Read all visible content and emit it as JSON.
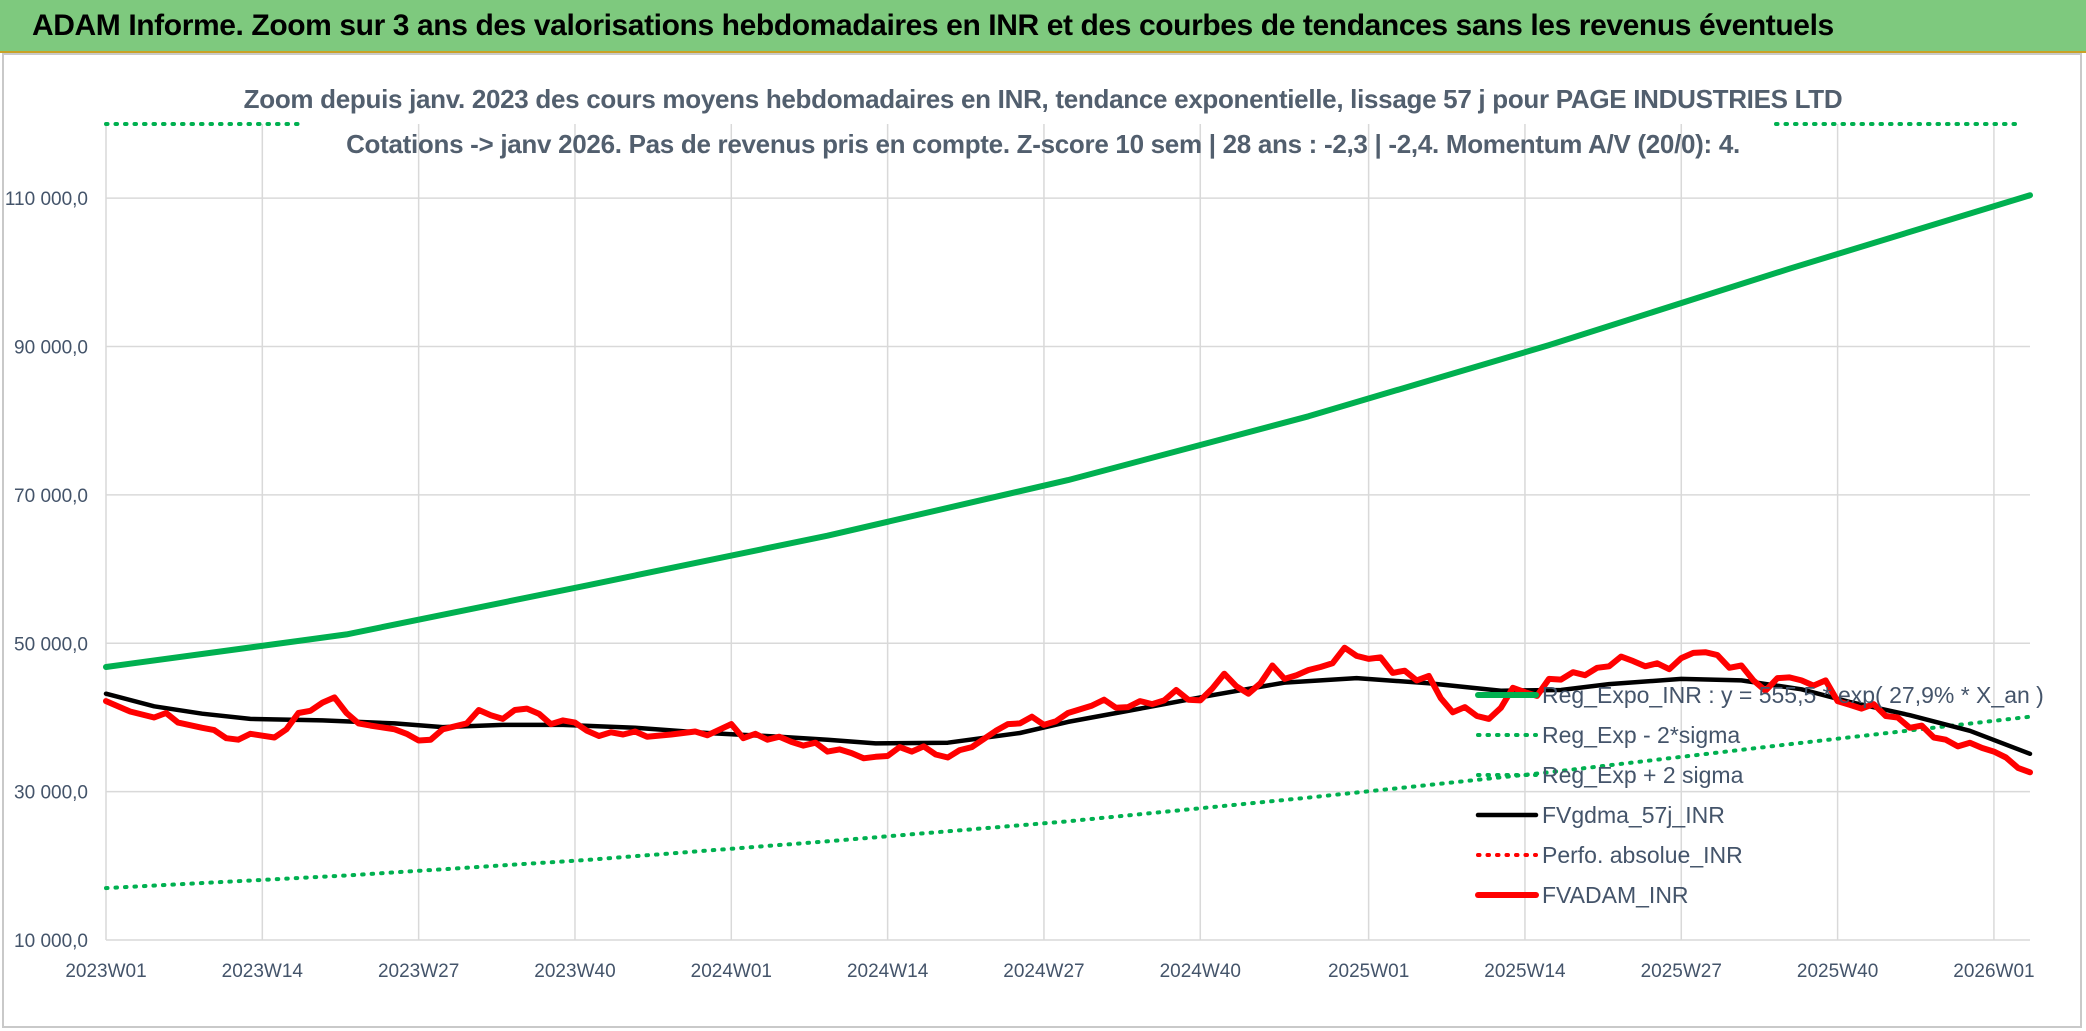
{
  "banner": {
    "title": "ADAM Informe. Zoom sur 3 ans des valorisations hebdomadaires en INR et des courbes de tendances sans les revenus éventuels"
  },
  "colors": {
    "banner_bg": "#7ec97e",
    "trend": "#00b050",
    "price": "#ff0000",
    "mma": "#000000",
    "grid": "#d9d9d9",
    "text": "#44546a"
  },
  "chart_data": {
    "type": "line",
    "title_line1": "Zoom depuis janv. 2023 des cours moyens hebdomadaires en INR, tendance exponentielle, lissage 57 j pour PAGE INDUSTRIES LTD",
    "title_line2": "Cotations -> janv 2026. Pas de revenus pris en compte. Z-score 10 sem | 28 ans : -2,3 | -2,4. Momentum A/V (20/0): 4.",
    "xlabel": "",
    "ylabel": "",
    "ylim": [
      10000,
      120000
    ],
    "y_ticks": [
      "10 000,0",
      "30 000,0",
      "50 000,0",
      "70 000,0",
      "90 000,0",
      "110 000,0"
    ],
    "y_tick_values": [
      10000,
      30000,
      50000,
      70000,
      90000,
      110000
    ],
    "x_range_weeks": [
      0,
      160
    ],
    "x_ticks": [
      "2023W01",
      "2023W14",
      "2023W27",
      "2023W40",
      "2024W01",
      "2024W14",
      "2024W27",
      "2024W40",
      "2025W01",
      "2025W14",
      "2025W27",
      "2025W40",
      "2026W01"
    ],
    "x_tick_weeks": [
      0,
      13,
      26,
      39,
      52,
      65,
      78,
      91,
      105,
      118,
      131,
      144,
      157
    ],
    "grid": true,
    "legend_position": "right",
    "series": [
      {
        "name": "Reg_Expo_INR : y = 555,5 * exp( 27,9% *  X_an )",
        "color": "#00b050",
        "style": "solid-thick",
        "points": [
          [
            0,
            46800
          ],
          [
            20,
            51200
          ],
          [
            40,
            57800
          ],
          [
            60,
            64500
          ],
          [
            80,
            72000
          ],
          [
            100,
            80600
          ],
          [
            120,
            90200
          ],
          [
            140,
            100500
          ],
          [
            160,
            110400
          ]
        ]
      },
      {
        "name": "Reg_Exp - 2*sigma",
        "color": "#00b050",
        "style": "dotted",
        "points": [
          [
            0,
            120000
          ],
          [
            160,
            120000
          ]
        ]
      },
      {
        "name": "Reg_Exp + 2 sigma",
        "color": "#00b050",
        "style": "dotted",
        "points": [
          [
            0,
            17000
          ],
          [
            20,
            18700
          ],
          [
            40,
            20800
          ],
          [
            60,
            23300
          ],
          [
            80,
            26000
          ],
          [
            100,
            29200
          ],
          [
            120,
            32600
          ],
          [
            140,
            36400
          ],
          [
            160,
            40100
          ]
        ]
      },
      {
        "name": "FVgdma_57j_INR",
        "color": "#000000",
        "style": "solid",
        "points": [
          [
            0,
            43200
          ],
          [
            4,
            41500
          ],
          [
            8,
            40500
          ],
          [
            12,
            39800
          ],
          [
            18,
            39600
          ],
          [
            24,
            39200
          ],
          [
            28,
            38700
          ],
          [
            33,
            39000
          ],
          [
            38,
            39000
          ],
          [
            44,
            38600
          ],
          [
            50,
            37900
          ],
          [
            56,
            37400
          ],
          [
            60,
            37000
          ],
          [
            64,
            36500
          ],
          [
            70,
            36600
          ],
          [
            76,
            37900
          ],
          [
            80,
            39400
          ],
          [
            86,
            41200
          ],
          [
            92,
            43000
          ],
          [
            98,
            44700
          ],
          [
            104,
            45300
          ],
          [
            110,
            44600
          ],
          [
            116,
            43600
          ],
          [
            121,
            43700
          ],
          [
            125,
            44500
          ],
          [
            131,
            45200
          ],
          [
            136,
            45000
          ],
          [
            141,
            43800
          ],
          [
            145,
            42100
          ],
          [
            150,
            40300
          ],
          [
            155,
            38200
          ],
          [
            160,
            35100
          ]
        ]
      },
      {
        "name": "Perfo. absolue_INR",
        "color": "#ff0000",
        "style": "dotted",
        "points": []
      },
      {
        "name": "FVADAM_INR",
        "color": "#ff0000",
        "style": "solid-thick",
        "points": [
          [
            0,
            42200
          ],
          [
            2,
            40800
          ],
          [
            4,
            40000
          ],
          [
            5,
            40600
          ],
          [
            6,
            39300
          ],
          [
            8,
            38600
          ],
          [
            9,
            38300
          ],
          [
            10,
            37200
          ],
          [
            11,
            37000
          ],
          [
            12,
            37800
          ],
          [
            14,
            37300
          ],
          [
            15,
            38400
          ],
          [
            16,
            40600
          ],
          [
            17,
            40900
          ],
          [
            18,
            42000
          ],
          [
            19,
            42700
          ],
          [
            20,
            40600
          ],
          [
            21,
            39200
          ],
          [
            22,
            38900
          ],
          [
            24,
            38400
          ],
          [
            25,
            37800
          ],
          [
            26,
            36900
          ],
          [
            27,
            37000
          ],
          [
            28,
            38400
          ],
          [
            30,
            39200
          ],
          [
            31,
            41000
          ],
          [
            32,
            40300
          ],
          [
            33,
            39800
          ],
          [
            34,
            41000
          ],
          [
            35,
            41200
          ],
          [
            36,
            40500
          ],
          [
            37,
            39100
          ],
          [
            38,
            39600
          ],
          [
            39,
            39300
          ],
          [
            40,
            38200
          ],
          [
            41,
            37500
          ],
          [
            42,
            38000
          ],
          [
            43,
            37700
          ],
          [
            44,
            38100
          ],
          [
            45,
            37400
          ],
          [
            47,
            37700
          ],
          [
            49,
            38100
          ],
          [
            50,
            37600
          ],
          [
            52,
            39100
          ],
          [
            53,
            37200
          ],
          [
            54,
            37800
          ],
          [
            55,
            37000
          ],
          [
            56,
            37400
          ],
          [
            57,
            36700
          ],
          [
            58,
            36200
          ],
          [
            59,
            36600
          ],
          [
            60,
            35400
          ],
          [
            61,
            35700
          ],
          [
            62,
            35200
          ],
          [
            63,
            34500
          ],
          [
            64,
            34700
          ],
          [
            65,
            34800
          ],
          [
            66,
            36000
          ],
          [
            67,
            35400
          ],
          [
            68,
            36100
          ],
          [
            69,
            35000
          ],
          [
            70,
            34600
          ],
          [
            71,
            35600
          ],
          [
            72,
            36000
          ],
          [
            73,
            37100
          ],
          [
            74,
            38200
          ],
          [
            75,
            39100
          ],
          [
            76,
            39200
          ],
          [
            77,
            40100
          ],
          [
            78,
            39000
          ],
          [
            79,
            39500
          ],
          [
            80,
            40600
          ],
          [
            82,
            41600
          ],
          [
            83,
            42400
          ],
          [
            84,
            41300
          ],
          [
            85,
            41400
          ],
          [
            86,
            42200
          ],
          [
            87,
            41800
          ],
          [
            88,
            42300
          ],
          [
            89,
            43700
          ],
          [
            90,
            42400
          ],
          [
            91,
            42300
          ],
          [
            92,
            43900
          ],
          [
            93,
            45900
          ],
          [
            94,
            44200
          ],
          [
            95,
            43200
          ],
          [
            96,
            44600
          ],
          [
            97,
            47000
          ],
          [
            98,
            45200
          ],
          [
            99,
            45700
          ],
          [
            100,
            46400
          ],
          [
            101,
            46800
          ],
          [
            102,
            47300
          ],
          [
            103,
            49400
          ],
          [
            104,
            48300
          ],
          [
            105,
            47900
          ],
          [
            106,
            48100
          ],
          [
            107,
            46000
          ],
          [
            108,
            46300
          ],
          [
            109,
            45000
          ],
          [
            110,
            45600
          ],
          [
            111,
            42600
          ],
          [
            112,
            40700
          ],
          [
            113,
            41400
          ],
          [
            114,
            40200
          ],
          [
            115,
            39800
          ],
          [
            116,
            41300
          ],
          [
            117,
            44000
          ],
          [
            118,
            43400
          ],
          [
            119,
            42900
          ],
          [
            120,
            45200
          ],
          [
            121,
            45100
          ],
          [
            122,
            46100
          ],
          [
            123,
            45700
          ],
          [
            124,
            46700
          ],
          [
            125,
            46900
          ],
          [
            126,
            48200
          ],
          [
            127,
            47600
          ],
          [
            128,
            46900
          ],
          [
            129,
            47300
          ],
          [
            130,
            46500
          ],
          [
            131,
            48000
          ],
          [
            132,
            48700
          ],
          [
            133,
            48800
          ],
          [
            134,
            48400
          ],
          [
            135,
            46700
          ],
          [
            136,
            47000
          ],
          [
            137,
            45000
          ],
          [
            138,
            43600
          ],
          [
            139,
            45300
          ],
          [
            140,
            45400
          ],
          [
            141,
            45000
          ],
          [
            142,
            44300
          ],
          [
            143,
            45000
          ],
          [
            144,
            42200
          ],
          [
            145,
            41700
          ],
          [
            146,
            41200
          ],
          [
            147,
            41800
          ],
          [
            148,
            40200
          ],
          [
            149,
            40000
          ],
          [
            150,
            38600
          ],
          [
            151,
            38900
          ],
          [
            152,
            37300
          ],
          [
            153,
            37000
          ],
          [
            154,
            36100
          ],
          [
            155,
            36600
          ],
          [
            156,
            35900
          ],
          [
            157,
            35400
          ],
          [
            158,
            34600
          ],
          [
            159,
            33200
          ],
          [
            160,
            32600
          ]
        ]
      }
    ]
  }
}
